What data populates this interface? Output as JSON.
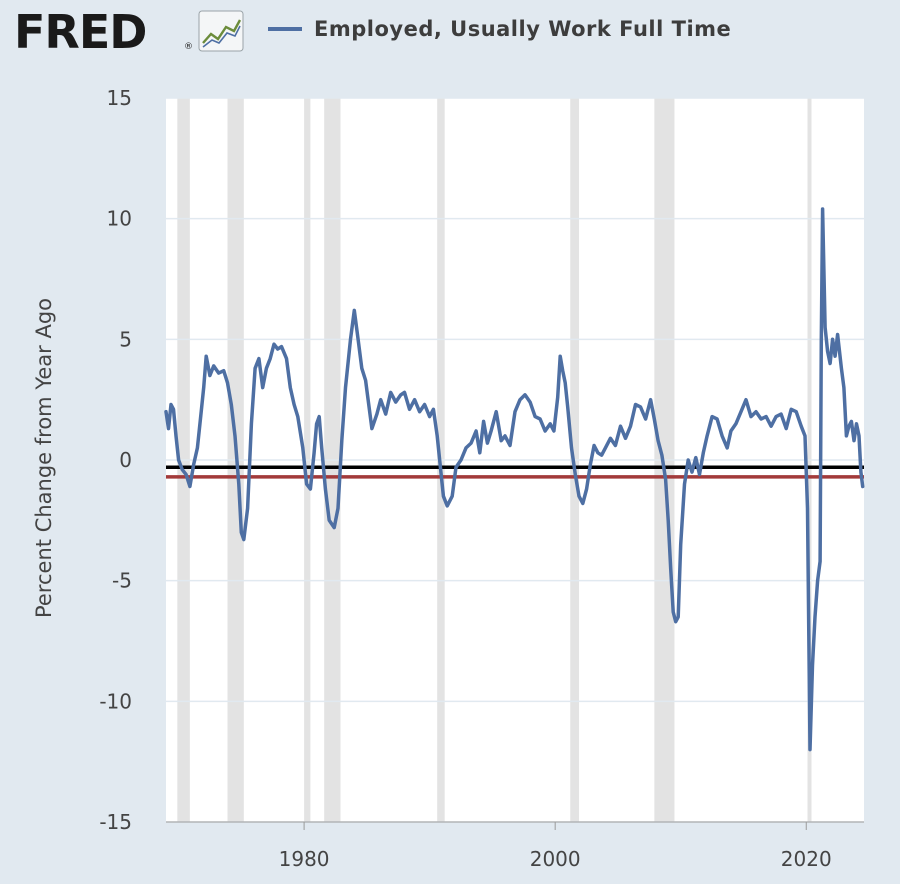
{
  "header": {
    "logo_text": "FRED",
    "logo_mark": "®",
    "logo_icon": "line-graph-icon"
  },
  "chart_data": {
    "type": "line",
    "title": "",
    "legend_position": "top",
    "ylabel": "Percent Change from Year Ago",
    "xlabel": "",
    "xlim": [
      1969.0,
      2024.6
    ],
    "ylim": [
      -15,
      15
    ],
    "y_ticks": [
      15,
      10,
      5,
      0,
      -5,
      -10,
      -15
    ],
    "x_ticks": [
      1980,
      2000,
      2020
    ],
    "grid": "horizontal",
    "recessions": [
      [
        1969.9,
        1970.9
      ],
      [
        1973.9,
        1975.2
      ],
      [
        1980.0,
        1980.5
      ],
      [
        1981.6,
        1982.9
      ],
      [
        1990.6,
        1991.2
      ],
      [
        2001.2,
        2001.9
      ],
      [
        2007.9,
        2009.5
      ],
      [
        2020.1,
        2020.4
      ]
    ],
    "reference_lines": [
      {
        "value": -0.3,
        "color": "#000000"
      },
      {
        "value": -0.7,
        "color": "#a23a3a"
      }
    ],
    "series": [
      {
        "name": "Employed, Usually Work Full Time",
        "color": "#4e6fa3",
        "points": [
          [
            1969.0,
            2.0
          ],
          [
            1969.2,
            1.3
          ],
          [
            1969.4,
            2.3
          ],
          [
            1969.6,
            2.1
          ],
          [
            1969.8,
            1.0
          ],
          [
            1970.0,
            0.0
          ],
          [
            1970.3,
            -0.4
          ],
          [
            1970.6,
            -0.6
          ],
          [
            1970.9,
            -1.1
          ],
          [
            1971.2,
            -0.2
          ],
          [
            1971.5,
            0.5
          ],
          [
            1971.8,
            2.0
          ],
          [
            1972.0,
            3.0
          ],
          [
            1972.2,
            4.3
          ],
          [
            1972.5,
            3.5
          ],
          [
            1972.8,
            3.9
          ],
          [
            1973.2,
            3.6
          ],
          [
            1973.6,
            3.7
          ],
          [
            1973.9,
            3.2
          ],
          [
            1974.2,
            2.3
          ],
          [
            1974.5,
            1.0
          ],
          [
            1974.8,
            -1.0
          ],
          [
            1975.0,
            -3.0
          ],
          [
            1975.2,
            -3.3
          ],
          [
            1975.5,
            -2.0
          ],
          [
            1975.8,
            1.5
          ],
          [
            1976.1,
            3.8
          ],
          [
            1976.4,
            4.2
          ],
          [
            1976.7,
            3.0
          ],
          [
            1977.0,
            3.8
          ],
          [
            1977.3,
            4.2
          ],
          [
            1977.6,
            4.8
          ],
          [
            1977.9,
            4.6
          ],
          [
            1978.2,
            4.7
          ],
          [
            1978.6,
            4.2
          ],
          [
            1978.9,
            3.0
          ],
          [
            1979.2,
            2.3
          ],
          [
            1979.5,
            1.8
          ],
          [
            1979.9,
            0.5
          ],
          [
            1980.2,
            -1.0
          ],
          [
            1980.5,
            -1.2
          ],
          [
            1980.8,
            0.3
          ],
          [
            1981.0,
            1.5
          ],
          [
            1981.2,
            1.8
          ],
          [
            1981.4,
            0.5
          ],
          [
            1981.7,
            -1.2
          ],
          [
            1982.0,
            -2.5
          ],
          [
            1982.4,
            -2.8
          ],
          [
            1982.7,
            -2.0
          ],
          [
            1983.0,
            0.8
          ],
          [
            1983.3,
            3.0
          ],
          [
            1983.7,
            5.0
          ],
          [
            1984.0,
            6.2
          ],
          [
            1984.3,
            5.0
          ],
          [
            1984.6,
            3.8
          ],
          [
            1984.9,
            3.3
          ],
          [
            1985.1,
            2.5
          ],
          [
            1985.4,
            1.3
          ],
          [
            1985.8,
            1.9
          ],
          [
            1986.1,
            2.5
          ],
          [
            1986.5,
            1.9
          ],
          [
            1986.9,
            2.8
          ],
          [
            1987.3,
            2.4
          ],
          [
            1987.7,
            2.7
          ],
          [
            1988.0,
            2.8
          ],
          [
            1988.4,
            2.1
          ],
          [
            1988.8,
            2.5
          ],
          [
            1989.2,
            2.0
          ],
          [
            1989.6,
            2.3
          ],
          [
            1990.0,
            1.8
          ],
          [
            1990.3,
            2.1
          ],
          [
            1990.6,
            1.0
          ],
          [
            1990.9,
            -0.5
          ],
          [
            1991.1,
            -1.5
          ],
          [
            1991.4,
            -1.9
          ],
          [
            1991.8,
            -1.5
          ],
          [
            1992.1,
            -0.3
          ],
          [
            1992.5,
            0.0
          ],
          [
            1992.9,
            0.5
          ],
          [
            1993.3,
            0.7
          ],
          [
            1993.7,
            1.2
          ],
          [
            1994.0,
            0.3
          ],
          [
            1994.3,
            1.6
          ],
          [
            1994.6,
            0.7
          ],
          [
            1994.9,
            1.2
          ],
          [
            1995.3,
            2.0
          ],
          [
            1995.7,
            0.8
          ],
          [
            1996.0,
            1.0
          ],
          [
            1996.4,
            0.6
          ],
          [
            1996.8,
            2.0
          ],
          [
            1997.2,
            2.5
          ],
          [
            1997.6,
            2.7
          ],
          [
            1998.0,
            2.4
          ],
          [
            1998.4,
            1.8
          ],
          [
            1998.8,
            1.7
          ],
          [
            1999.2,
            1.2
          ],
          [
            1999.6,
            1.5
          ],
          [
            1999.9,
            1.2
          ],
          [
            2000.2,
            2.6
          ],
          [
            2000.4,
            4.3
          ],
          [
            2000.6,
            3.7
          ],
          [
            2000.8,
            3.2
          ],
          [
            2001.0,
            2.2
          ],
          [
            2001.3,
            0.5
          ],
          [
            2001.6,
            -0.6
          ],
          [
            2001.9,
            -1.5
          ],
          [
            2002.2,
            -1.8
          ],
          [
            2002.5,
            -1.2
          ],
          [
            2002.8,
            -0.2
          ],
          [
            2003.1,
            0.6
          ],
          [
            2003.4,
            0.3
          ],
          [
            2003.7,
            0.2
          ],
          [
            2004.0,
            0.5
          ],
          [
            2004.4,
            0.9
          ],
          [
            2004.8,
            0.6
          ],
          [
            2005.2,
            1.4
          ],
          [
            2005.6,
            0.9
          ],
          [
            2006.0,
            1.4
          ],
          [
            2006.4,
            2.3
          ],
          [
            2006.8,
            2.2
          ],
          [
            2007.2,
            1.7
          ],
          [
            2007.6,
            2.5
          ],
          [
            2007.9,
            1.7
          ],
          [
            2008.2,
            0.8
          ],
          [
            2008.5,
            0.2
          ],
          [
            2008.8,
            -0.8
          ],
          [
            2009.0,
            -2.5
          ],
          [
            2009.2,
            -4.5
          ],
          [
            2009.4,
            -6.3
          ],
          [
            2009.6,
            -6.7
          ],
          [
            2009.8,
            -6.5
          ],
          [
            2010.0,
            -3.5
          ],
          [
            2010.3,
            -1.0
          ],
          [
            2010.6,
            0.0
          ],
          [
            2010.9,
            -0.5
          ],
          [
            2011.2,
            0.1
          ],
          [
            2011.5,
            -0.6
          ],
          [
            2011.8,
            0.3
          ],
          [
            2012.1,
            1.0
          ],
          [
            2012.5,
            1.8
          ],
          [
            2012.9,
            1.7
          ],
          [
            2013.3,
            1.0
          ],
          [
            2013.7,
            0.5
          ],
          [
            2014.0,
            1.2
          ],
          [
            2014.4,
            1.5
          ],
          [
            2014.8,
            2.0
          ],
          [
            2015.2,
            2.5
          ],
          [
            2015.6,
            1.8
          ],
          [
            2016.0,
            2.0
          ],
          [
            2016.4,
            1.7
          ],
          [
            2016.8,
            1.8
          ],
          [
            2017.2,
            1.4
          ],
          [
            2017.6,
            1.8
          ],
          [
            2018.0,
            1.9
          ],
          [
            2018.4,
            1.3
          ],
          [
            2018.8,
            2.1
          ],
          [
            2019.2,
            2.0
          ],
          [
            2019.6,
            1.4
          ],
          [
            2019.9,
            1.0
          ],
          [
            2020.1,
            -2.0
          ],
          [
            2020.3,
            -12.0
          ],
          [
            2020.5,
            -8.5
          ],
          [
            2020.7,
            -6.5
          ],
          [
            2020.9,
            -5.0
          ],
          [
            2021.1,
            -4.2
          ],
          [
            2021.2,
            5.0
          ],
          [
            2021.3,
            10.4
          ],
          [
            2021.5,
            5.5
          ],
          [
            2021.7,
            4.5
          ],
          [
            2021.9,
            4.0
          ],
          [
            2022.1,
            5.0
          ],
          [
            2022.3,
            4.3
          ],
          [
            2022.5,
            5.2
          ],
          [
            2022.8,
            3.8
          ],
          [
            2023.0,
            3.0
          ],
          [
            2023.2,
            1.0
          ],
          [
            2023.4,
            1.4
          ],
          [
            2023.6,
            1.6
          ],
          [
            2023.8,
            0.8
          ],
          [
            2024.0,
            1.5
          ],
          [
            2024.2,
            1.0
          ],
          [
            2024.35,
            -0.5
          ],
          [
            2024.5,
            -1.1
          ]
        ]
      }
    ]
  }
}
